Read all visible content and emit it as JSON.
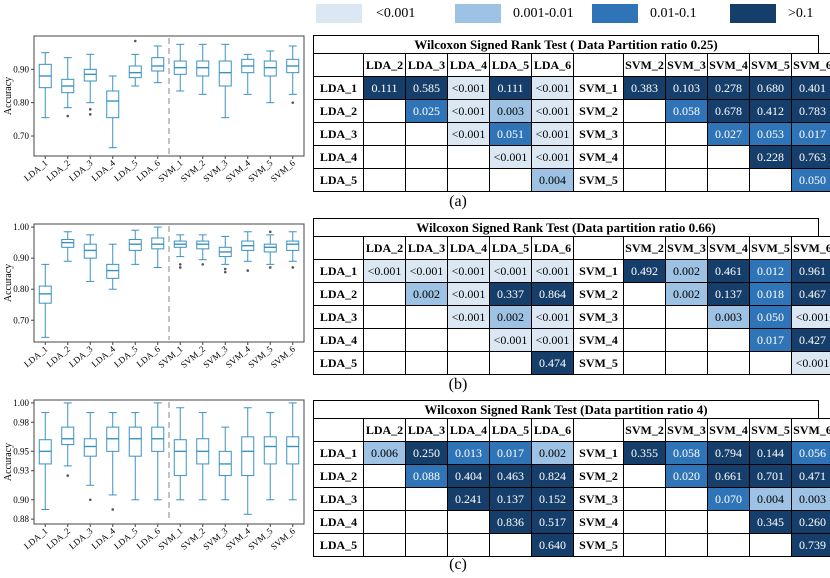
{
  "legend": [
    {
      "label": "<0.001",
      "color": "#dbe8f4"
    },
    {
      "label": "0.001-0.01",
      "color": "#9dc2e3"
    },
    {
      "label": "0.01-0.1",
      "color": "#2f74b6"
    },
    {
      "label": ">0.1",
      "color": "#163e6a"
    }
  ],
  "chart_data": [
    {
      "type": "box",
      "ylabel": "Accuracy",
      "ylim": [
        0.64,
        1.0
      ],
      "yticks": [
        0.7,
        0.8,
        0.9
      ],
      "ytick_labels": [
        "0.70",
        "0.80",
        "0.90"
      ],
      "categories": [
        "LDA_1",
        "LDA_2",
        "LDA_3",
        "LDA_4",
        "LDA_5",
        "LDA_6",
        "SVM_1",
        "SVM_2",
        "SVM_3",
        "SVM_4",
        "SVM_5",
        "SVM_6"
      ],
      "boxes": [
        {
          "min": 0.755,
          "q1": 0.845,
          "median": 0.88,
          "q3": 0.915,
          "max": 0.95,
          "outliers": []
        },
        {
          "min": 0.785,
          "q1": 0.83,
          "median": 0.85,
          "q3": 0.87,
          "max": 0.935,
          "outliers": [
            0.76
          ]
        },
        {
          "min": 0.8,
          "q1": 0.865,
          "median": 0.885,
          "q3": 0.9,
          "max": 0.945,
          "outliers": [
            0.78,
            0.765
          ]
        },
        {
          "min": 0.665,
          "q1": 0.755,
          "median": 0.805,
          "q3": 0.835,
          "max": 0.88,
          "outliers": []
        },
        {
          "min": 0.85,
          "q1": 0.875,
          "median": 0.89,
          "q3": 0.91,
          "max": 0.945,
          "outliers": [
            0.985
          ]
        },
        {
          "min": 0.86,
          "q1": 0.895,
          "median": 0.91,
          "q3": 0.935,
          "max": 0.97,
          "outliers": []
        },
        {
          "min": 0.835,
          "q1": 0.885,
          "median": 0.905,
          "q3": 0.925,
          "max": 0.975,
          "outliers": []
        },
        {
          "min": 0.825,
          "q1": 0.88,
          "median": 0.905,
          "q3": 0.925,
          "max": 0.975,
          "outliers": []
        },
        {
          "min": 0.755,
          "q1": 0.85,
          "median": 0.89,
          "q3": 0.925,
          "max": 0.975,
          "outliers": []
        },
        {
          "min": 0.825,
          "q1": 0.89,
          "median": 0.91,
          "q3": 0.93,
          "max": 0.945,
          "outliers": []
        },
        {
          "min": 0.8,
          "q1": 0.88,
          "median": 0.905,
          "q3": 0.925,
          "max": 0.955,
          "outliers": []
        },
        {
          "min": 0.825,
          "q1": 0.89,
          "median": 0.91,
          "q3": 0.93,
          "max": 0.97,
          "outliers": [
            0.8
          ]
        }
      ]
    },
    {
      "type": "box",
      "ylabel": "Accuracy",
      "ylim": [
        0.63,
        1.01
      ],
      "yticks": [
        0.7,
        0.8,
        0.9,
        1.0
      ],
      "ytick_labels": [
        "0.70",
        "0.80",
        "0.90",
        "1.00"
      ],
      "categories": [
        "LDA_1",
        "LDA_2",
        "LDA_3",
        "LDA_4",
        "LDA_5",
        "LDA_6",
        "SVM_1",
        "SVM_2",
        "SVM_3",
        "SVM_4",
        "SVM_5",
        "SVM_6"
      ],
      "boxes": [
        {
          "min": 0.645,
          "q1": 0.755,
          "median": 0.785,
          "q3": 0.81,
          "max": 0.88,
          "outliers": []
        },
        {
          "min": 0.89,
          "q1": 0.935,
          "median": 0.95,
          "q3": 0.96,
          "max": 0.985,
          "outliers": []
        },
        {
          "min": 0.825,
          "q1": 0.9,
          "median": 0.925,
          "q3": 0.945,
          "max": 0.975,
          "outliers": []
        },
        {
          "min": 0.8,
          "q1": 0.835,
          "median": 0.86,
          "q3": 0.88,
          "max": 0.945,
          "outliers": []
        },
        {
          "min": 0.88,
          "q1": 0.925,
          "median": 0.945,
          "q3": 0.96,
          "max": 0.99,
          "outliers": []
        },
        {
          "min": 0.87,
          "q1": 0.93,
          "median": 0.945,
          "q3": 0.965,
          "max": 1.0,
          "outliers": []
        },
        {
          "min": 0.905,
          "q1": 0.935,
          "median": 0.945,
          "q3": 0.955,
          "max": 0.975,
          "outliers": [
            0.88,
            0.87
          ]
        },
        {
          "min": 0.895,
          "q1": 0.93,
          "median": 0.945,
          "q3": 0.955,
          "max": 0.975,
          "outliers": [
            0.88
          ]
        },
        {
          "min": 0.88,
          "q1": 0.905,
          "median": 0.92,
          "q3": 0.935,
          "max": 0.97,
          "outliers": [
            0.865,
            0.855
          ]
        },
        {
          "min": 0.89,
          "q1": 0.925,
          "median": 0.94,
          "q3": 0.955,
          "max": 0.985,
          "outliers": [
            0.86
          ]
        },
        {
          "min": 0.88,
          "q1": 0.92,
          "median": 0.935,
          "q3": 0.945,
          "max": 0.975,
          "outliers": [
            0.985,
            0.87
          ]
        },
        {
          "min": 0.89,
          "q1": 0.925,
          "median": 0.945,
          "q3": 0.955,
          "max": 0.985,
          "outliers": [
            0.87
          ]
        }
      ]
    },
    {
      "type": "box",
      "ylabel": "Accuracy",
      "ylim": [
        0.875,
        1.003
      ],
      "yticks": [
        0.88,
        0.9,
        0.93,
        0.95,
        0.98,
        1.0
      ],
      "ytick_labels": [
        "0.88",
        "0.90",
        "0.93",
        "0.95",
        "0.98",
        "1.00"
      ],
      "categories": [
        "LDA_1",
        "LDA_2",
        "LDA_3",
        "LDA_4",
        "LDA_5",
        "LDA_6",
        "SVM_1",
        "SVM_2",
        "SVM_3",
        "SVM_4",
        "SVM_5",
        "SVM_6"
      ],
      "boxes": [
        {
          "min": 0.89,
          "q1": 0.937,
          "median": 0.95,
          "q3": 0.962,
          "max": 0.99,
          "outliers": []
        },
        {
          "min": 0.935,
          "q1": 0.957,
          "median": 0.963,
          "q3": 0.975,
          "max": 1.0,
          "outliers": [
            0.925
          ]
        },
        {
          "min": 0.915,
          "q1": 0.945,
          "median": 0.955,
          "q3": 0.963,
          "max": 0.99,
          "outliers": [
            0.9
          ]
        },
        {
          "min": 0.905,
          "q1": 0.95,
          "median": 0.963,
          "q3": 0.975,
          "max": 0.99,
          "outliers": [
            0.89
          ]
        },
        {
          "min": 0.9,
          "q1": 0.945,
          "median": 0.963,
          "q3": 0.975,
          "max": 0.99,
          "outliers": []
        },
        {
          "min": 0.9,
          "q1": 0.95,
          "median": 0.963,
          "q3": 0.975,
          "max": 1.0,
          "outliers": []
        },
        {
          "min": 0.9,
          "q1": 0.925,
          "median": 0.95,
          "q3": 0.962,
          "max": 0.995,
          "outliers": []
        },
        {
          "min": 0.9,
          "q1": 0.937,
          "median": 0.95,
          "q3": 0.963,
          "max": 0.99,
          "outliers": []
        },
        {
          "min": 0.9,
          "q1": 0.925,
          "median": 0.937,
          "q3": 0.95,
          "max": 0.975,
          "outliers": []
        },
        {
          "min": 0.885,
          "q1": 0.925,
          "median": 0.95,
          "q3": 0.965,
          "max": 0.995,
          "outliers": []
        },
        {
          "min": 0.9,
          "q1": 0.937,
          "median": 0.955,
          "q3": 0.965,
          "max": 0.99,
          "outliers": []
        },
        {
          "min": 0.9,
          "q1": 0.937,
          "median": 0.955,
          "q3": 0.965,
          "max": 1.0,
          "outliers": []
        }
      ]
    },
    {
      "type": "table",
      "title": "Wilcoxon Signed Rank Test ( Data Partition ratio 0.25)",
      "caption": "(a)",
      "lda_columns": [
        "LDA_2",
        "LDA_3",
        "LDA_4",
        "LDA_5",
        "LDA_6"
      ],
      "svm_columns": [
        "SVM_2",
        "SVM_3",
        "SVM_4",
        "SVM_5",
        "SVM_6"
      ],
      "rows": [
        {
          "lda": "LDA_1",
          "lda_vals": [
            "0.111",
            "0.585",
            "<0.001",
            "0.111",
            "<0.001"
          ],
          "svm": "SVM_1",
          "svm_vals": [
            "0.383",
            "0.103",
            "0.278",
            "0.680",
            "0.401"
          ]
        },
        {
          "lda": "LDA_2",
          "lda_vals": [
            "",
            "0.025",
            "<0.001",
            "0.003",
            "<0.001"
          ],
          "svm": "SVM_2",
          "svm_vals": [
            "",
            "0.058",
            "0.678",
            "0.412",
            "0.783"
          ]
        },
        {
          "lda": "LDA_3",
          "lda_vals": [
            "",
            "",
            "<0.001",
            "0.051",
            "<0.001"
          ],
          "svm": "SVM_3",
          "svm_vals": [
            "",
            "",
            "0.027",
            "0.053",
            "0.017"
          ]
        },
        {
          "lda": "LDA_4",
          "lda_vals": [
            "",
            "",
            "",
            "<0.001",
            "<0.001"
          ],
          "svm": "SVM_4",
          "svm_vals": [
            "",
            "",
            "",
            "0.228",
            "0.763"
          ]
        },
        {
          "lda": "LDA_5",
          "lda_vals": [
            "",
            "",
            "",
            "",
            "0.004"
          ],
          "svm": "SVM_5",
          "svm_vals": [
            "",
            "",
            "",
            "",
            "0.050"
          ]
        }
      ]
    },
    {
      "type": "table",
      "title": "Wilcoxon Signed Rank Test (Data partition ratio 0.66)",
      "caption": "(b)",
      "lda_columns": [
        "LDA_2",
        "LDA_3",
        "LDA_4",
        "LDA_5",
        "LDA_6"
      ],
      "svm_columns": [
        "SVM_2",
        "SVM_3",
        "SVM_4",
        "SVM_5",
        "SVM_6"
      ],
      "rows": [
        {
          "lda": "LDA_1",
          "lda_vals": [
            "<0.001",
            "<0.001",
            "<0.001",
            "<0.001",
            "<0.001"
          ],
          "svm": "SVM_1",
          "svm_vals": [
            "0.492",
            "0.002",
            "0.461",
            "0.012",
            "0.961"
          ]
        },
        {
          "lda": "LDA_2",
          "lda_vals": [
            "",
            "0.002",
            "<0.001",
            "0.337",
            "0.864"
          ],
          "svm": "SVM_2",
          "svm_vals": [
            "",
            "0.002",
            "0.137",
            "0.018",
            "0.467"
          ]
        },
        {
          "lda": "LDA_3",
          "lda_vals": [
            "",
            "",
            "<0.001",
            "0.002",
            "<0.001"
          ],
          "svm": "SVM_3",
          "svm_vals": [
            "",
            "",
            "0.003",
            "0.050",
            "<0.001"
          ]
        },
        {
          "lda": "LDA_4",
          "lda_vals": [
            "",
            "",
            "",
            "<0.001",
            "<0.001"
          ],
          "svm": "SVM_4",
          "svm_vals": [
            "",
            "",
            "",
            "0.017",
            "0.427"
          ]
        },
        {
          "lda": "LDA_5",
          "lda_vals": [
            "",
            "",
            "",
            "",
            "0.474"
          ],
          "svm": "SVM_5",
          "svm_vals": [
            "",
            "",
            "",
            "",
            "<0.001"
          ]
        }
      ]
    },
    {
      "type": "table",
      "title": "Wilcoxon Signed Rank Test (Data partition ratio 4)",
      "caption": "(c)",
      "lda_columns": [
        "LDA_2",
        "LDA_3",
        "LDA_4",
        "LDA_5",
        "LDA_6"
      ],
      "svm_columns": [
        "SVM_2",
        "SVM_3",
        "SVM_4",
        "SVM_5",
        "SVM_6"
      ],
      "rows": [
        {
          "lda": "LDA_1",
          "lda_vals": [
            "0.006",
            "0.250",
            "0.013",
            "0.017",
            "0.002"
          ],
          "svm": "SVM_1",
          "svm_vals": [
            "0.355",
            "0.058",
            "0.794",
            "0.144",
            "0.056"
          ]
        },
        {
          "lda": "LDA_2",
          "lda_vals": [
            "",
            "0.088",
            "0.404",
            "0.463",
            "0.824"
          ],
          "svm": "SVM_2",
          "svm_vals": [
            "",
            "0.020",
            "0.661",
            "0.701",
            "0.471"
          ]
        },
        {
          "lda": "LDA_3",
          "lda_vals": [
            "",
            "",
            "0.241",
            "0.137",
            "0.152"
          ],
          "svm": "SVM_3",
          "svm_vals": [
            "",
            "",
            "0.070",
            "0.004",
            "0.003"
          ]
        },
        {
          "lda": "LDA_4",
          "lda_vals": [
            "",
            "",
            "",
            "0.836",
            "0.517"
          ],
          "svm": "SVM_4",
          "svm_vals": [
            "",
            "",
            "",
            "0.345",
            "0.260"
          ]
        },
        {
          "lda": "LDA_5",
          "lda_vals": [
            "",
            "",
            "",
            "",
            "0.640"
          ],
          "svm": "SVM_5",
          "svm_vals": [
            "",
            "",
            "",
            "",
            "0.739"
          ]
        }
      ]
    }
  ]
}
